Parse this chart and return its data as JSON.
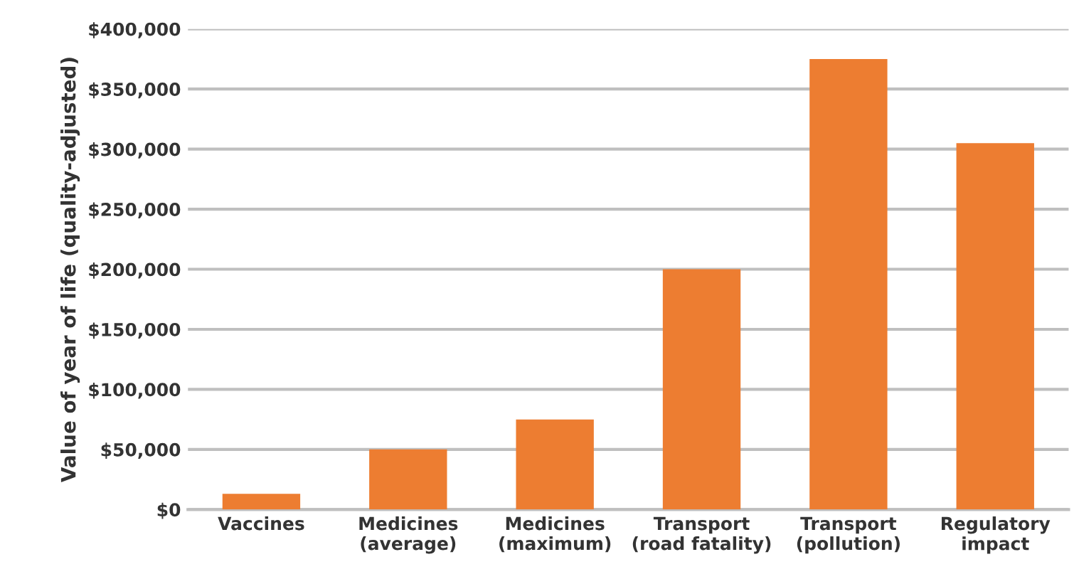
{
  "chart_data": {
    "type": "bar",
    "ylabel": "Value of year of life (quality-adjusted)",
    "categories": [
      "Vaccines",
      "Medicines\n(average)",
      "Medicines\n(maximum)",
      "Transport\n(road fatality)",
      "Transport\n(pollution)",
      "Regulatory\nimpact"
    ],
    "values": [
      13000,
      50000,
      75000,
      200000,
      375000,
      305000
    ],
    "color": "#ed7d31",
    "ylim": [
      0,
      400000
    ],
    "yticks": [
      {
        "value": 0,
        "label": "$0"
      },
      {
        "value": 50000,
        "label": "$50,000"
      },
      {
        "value": 100000,
        "label": "$100,000"
      },
      {
        "value": 150000,
        "label": "$150,000"
      },
      {
        "value": 200000,
        "label": "$200,000"
      },
      {
        "value": 250000,
        "label": "$250,000"
      },
      {
        "value": 300000,
        "label": "$300,000"
      },
      {
        "value": 350000,
        "label": "$350,000"
      },
      {
        "value": 400000,
        "label": "$400,000"
      }
    ],
    "grid": "y"
  }
}
